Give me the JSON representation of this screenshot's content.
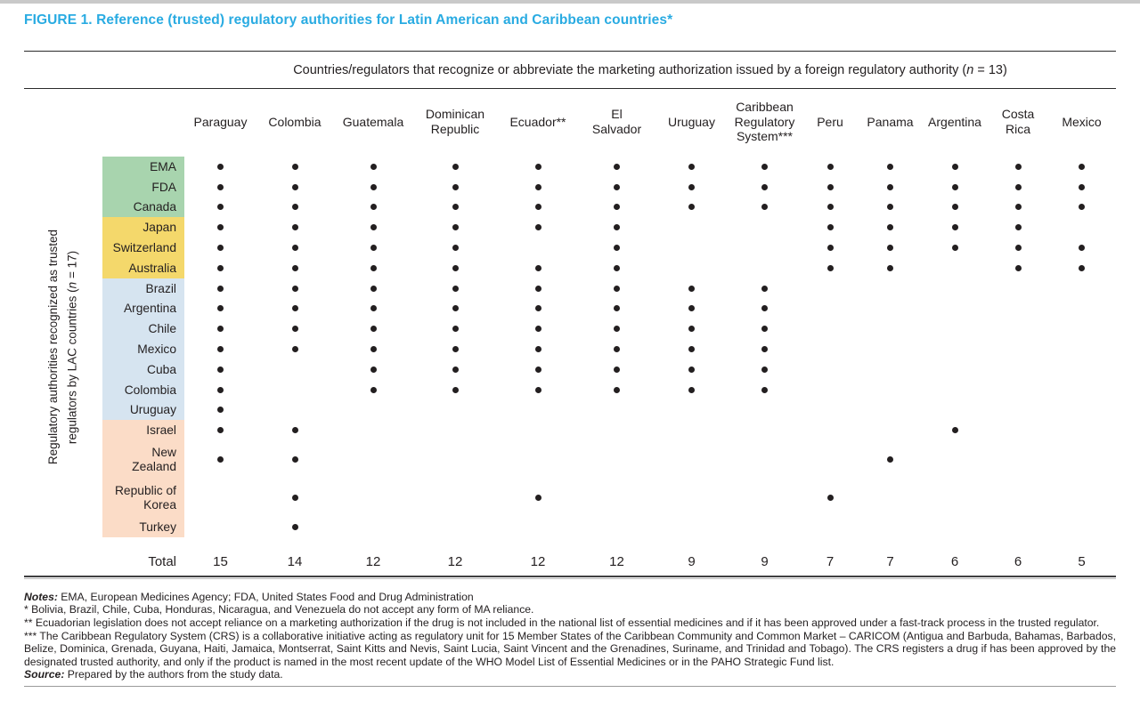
{
  "title": "FIGURE 1. Reference (trusted) regulatory authorities for Latin American and Caribbean countries*",
  "span_header": {
    "pre": "Countries/regulators that recognize or abbreviate the marketing authorization issued by a foreign regulatory authority (",
    "n": "n",
    "post": " = 13)"
  },
  "vertical_label": {
    "line1": "Regulatory authorities recognized as trusted",
    "line2_pre": "regulators by LAC countries (",
    "n": "n",
    "line2_post": " = 17)"
  },
  "chart_data": {
    "type": "table",
    "columns": [
      "Paraguay",
      "Colombia",
      "Guatemala",
      "Dominican\nRepublic",
      "Ecuador**",
      "El\nSalvador",
      "Uruguay",
      "Caribbean\nRegulatory\nSystem***",
      "Peru",
      "Panama",
      "Argentina",
      "Costa\nRica",
      "Mexico"
    ],
    "rows": [
      {
        "label": "EMA",
        "group": "green",
        "dots": [
          1,
          1,
          1,
          1,
          1,
          1,
          1,
          1,
          1,
          1,
          1,
          1,
          1
        ]
      },
      {
        "label": "FDA",
        "group": "green",
        "dots": [
          1,
          1,
          1,
          1,
          1,
          1,
          1,
          1,
          1,
          1,
          1,
          1,
          1
        ]
      },
      {
        "label": "Canada",
        "group": "green",
        "dots": [
          1,
          1,
          1,
          1,
          1,
          1,
          1,
          1,
          1,
          1,
          1,
          1,
          1
        ]
      },
      {
        "label": "Japan",
        "group": "yellow",
        "dots": [
          1,
          1,
          1,
          1,
          1,
          1,
          0,
          0,
          1,
          1,
          1,
          1,
          0
        ]
      },
      {
        "label": "Switzerland",
        "group": "yellow",
        "dots": [
          1,
          1,
          1,
          1,
          0,
          1,
          0,
          0,
          1,
          1,
          1,
          1,
          1
        ]
      },
      {
        "label": "Australia",
        "group": "yellow",
        "dots": [
          1,
          1,
          1,
          1,
          1,
          1,
          0,
          0,
          1,
          1,
          0,
          1,
          1
        ]
      },
      {
        "label": "Brazil",
        "group": "blue",
        "dots": [
          1,
          1,
          1,
          1,
          1,
          1,
          1,
          1,
          0,
          0,
          0,
          0,
          0
        ]
      },
      {
        "label": "Argentina",
        "group": "blue",
        "dots": [
          1,
          1,
          1,
          1,
          1,
          1,
          1,
          1,
          0,
          0,
          0,
          0,
          0
        ]
      },
      {
        "label": "Chile",
        "group": "blue",
        "dots": [
          1,
          1,
          1,
          1,
          1,
          1,
          1,
          1,
          0,
          0,
          0,
          0,
          0
        ]
      },
      {
        "label": "Mexico",
        "group": "blue",
        "dots": [
          1,
          1,
          1,
          1,
          1,
          1,
          1,
          1,
          0,
          0,
          0,
          0,
          0
        ]
      },
      {
        "label": "Cuba",
        "group": "blue",
        "dots": [
          1,
          0,
          1,
          1,
          1,
          1,
          1,
          1,
          0,
          0,
          0,
          0,
          0
        ]
      },
      {
        "label": "Colombia",
        "group": "blue",
        "dots": [
          1,
          0,
          1,
          1,
          1,
          1,
          1,
          1,
          0,
          0,
          0,
          0,
          0
        ]
      },
      {
        "label": "Uruguay",
        "group": "blue",
        "dots": [
          1,
          0,
          0,
          0,
          0,
          0,
          0,
          0,
          0,
          0,
          0,
          0,
          0
        ]
      },
      {
        "label": "Israel",
        "group": "peach",
        "dots": [
          1,
          1,
          0,
          0,
          0,
          0,
          0,
          0,
          0,
          0,
          1,
          0,
          0
        ]
      },
      {
        "label": "New\nZealand",
        "group": "peach",
        "dots": [
          1,
          1,
          0,
          0,
          0,
          0,
          0,
          0,
          0,
          1,
          0,
          0,
          0
        ]
      },
      {
        "label": "Republic of\nKorea",
        "group": "peach",
        "dots": [
          0,
          1,
          0,
          0,
          1,
          0,
          0,
          0,
          1,
          0,
          0,
          0,
          0
        ]
      },
      {
        "label": "Turkey",
        "group": "peach",
        "dots": [
          0,
          1,
          0,
          0,
          0,
          0,
          0,
          0,
          0,
          0,
          0,
          0,
          0
        ]
      }
    ],
    "total_label": "Total",
    "totals": [
      15,
      14,
      12,
      12,
      12,
      12,
      9,
      9,
      7,
      7,
      6,
      6,
      5
    ],
    "group_colors": {
      "green": "#a8d4ae",
      "yellow": "#f4d86b",
      "blue": "#d6e4f0",
      "peach": "#fbdcc7"
    },
    "dot_color": "#231f20",
    "title": "FIGURE 1. Reference (trusted) regulatory authorities for Latin American and Caribbean countries*",
    "x_axis_group_label": "Countries/regulators that recognize or abbreviate the marketing authorization issued by a foreign regulatory authority (n = 13)",
    "y_axis_group_label": "Regulatory authorities recognized as trusted regulators by LAC countries (n = 17)"
  },
  "notes": [
    {
      "label": "Notes:",
      "text": " EMA, European Medicines Agency; FDA, United States Food and Drug Administration"
    },
    {
      "label": "",
      "text": "* Bolivia, Brazil, Chile, Cuba, Honduras, Nicaragua, and Venezuela do not accept any form of MA reliance."
    },
    {
      "label": "",
      "text": "** Ecuadorian legislation does not accept reliance on a marketing authorization if the drug is not included in the national list of essential medicines and if it has been approved under a fast-track process in the trusted regulator."
    },
    {
      "label": "",
      "text": "*** The Caribbean Regulatory System (CRS) is a collaborative initiative acting as regulatory unit for 15 Member States of the Caribbean Community and Common Market – CARICOM (Antigua and Barbuda, Bahamas, Barbados, Belize, Dominica, Grenada, Guyana, Haiti, Jamaica, Montserrat, Saint Kitts and Nevis, Saint Lucia, Saint Vincent and the Grenadines, Suriname, and Trinidad and Tobago). The CRS registers a drug if has been approved by the designated trusted authority, and only if the product is named in the most recent update of the WHO Model List of Essential Medicines or in the PAHO Strategic Fund list."
    },
    {
      "label": "Source:",
      "text": " Prepared by the authors from the study data."
    }
  ]
}
